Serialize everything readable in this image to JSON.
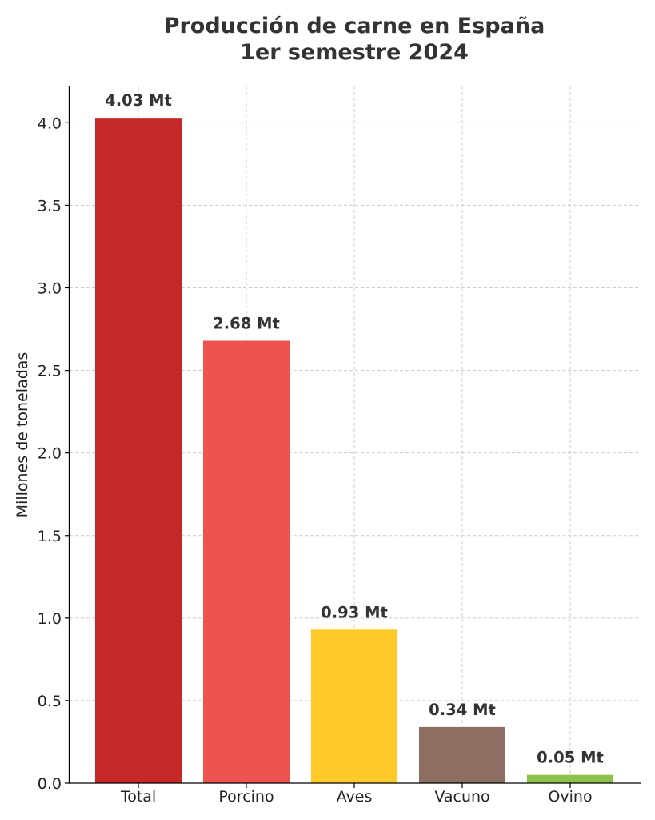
{
  "chart_data": {
    "type": "bar",
    "title_lines": [
      "Producción de carne en España",
      "1er semestre 2024"
    ],
    "xlabel": "",
    "ylabel": "Millones de toneladas",
    "categories": [
      "Total",
      "Porcino",
      "Aves",
      "Vacuno",
      "Ovino"
    ],
    "values": [
      4.03,
      2.68,
      0.93,
      0.34,
      0.05
    ],
    "data_labels": [
      "4.03 Mt",
      "2.68 Mt",
      "0.93 Mt",
      "0.34 Mt",
      "0.05 Mt"
    ],
    "colors": [
      "#c62828",
      "#ef5350",
      "#ffca28",
      "#8d6e63",
      "#8bc34a"
    ],
    "ylim": [
      0,
      4.22
    ],
    "yticks": [
      0.0,
      0.5,
      1.0,
      1.5,
      2.0,
      2.5,
      3.0,
      3.5,
      4.0
    ],
    "ytick_labels": [
      "0.0",
      "0.5",
      "1.0",
      "1.5",
      "2.0",
      "2.5",
      "3.0",
      "3.5",
      "4.0"
    ],
    "grid": true,
    "legend": "none"
  }
}
